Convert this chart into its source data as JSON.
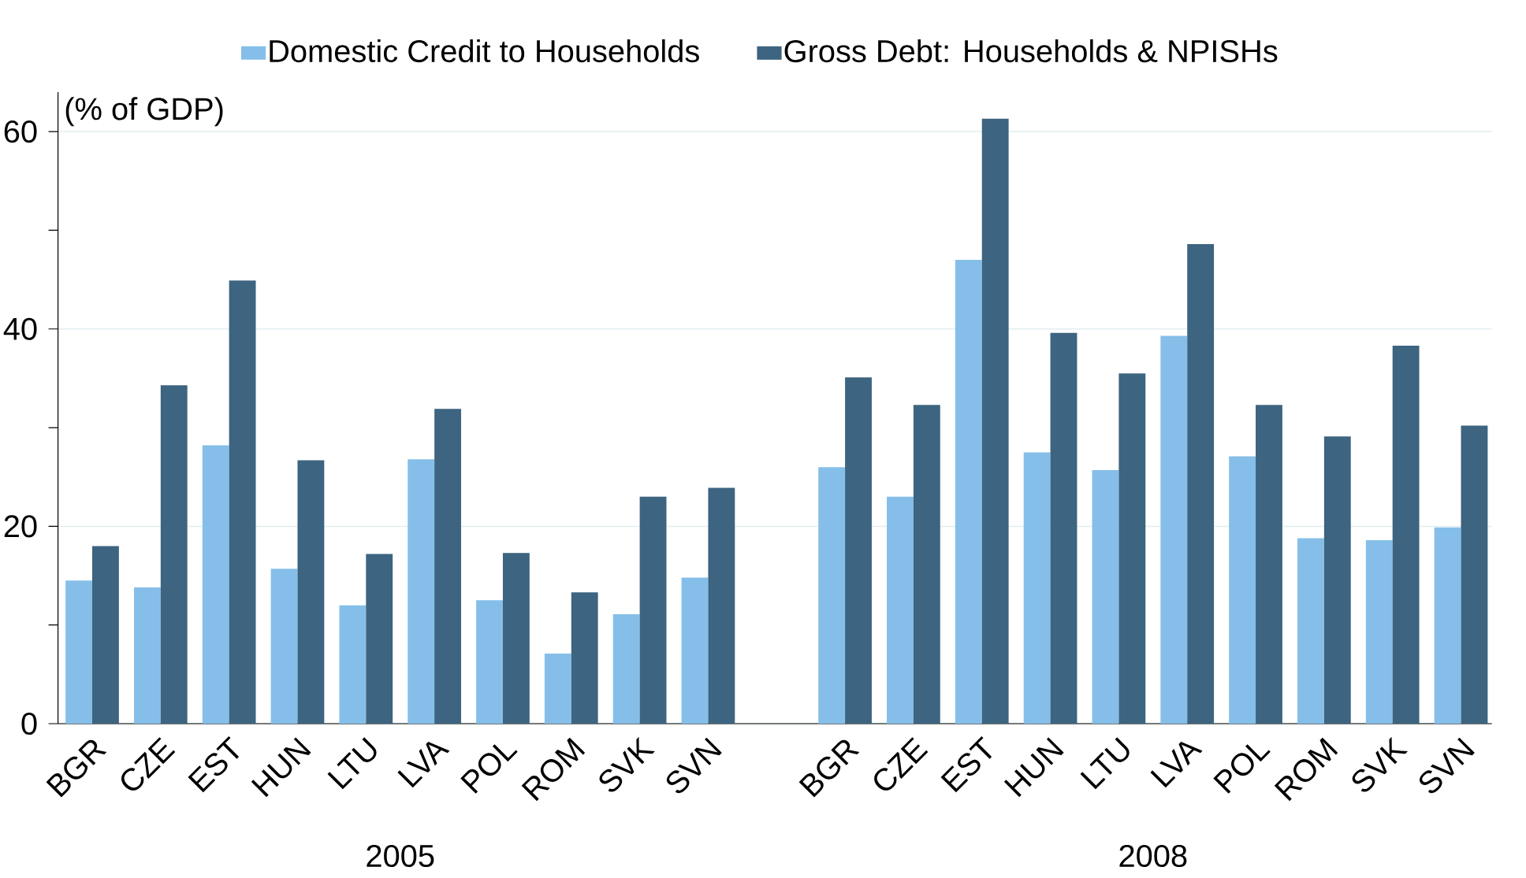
{
  "chart_data": {
    "type": "bar",
    "ylabel": "(% of GDP)",
    "categories": [
      "BGR",
      "CZE",
      "EST",
      "HUN",
      "LTU",
      "LVA",
      "POL",
      "ROM",
      "SVK",
      "SVN",
      null,
      "BGR",
      "CZE",
      "EST",
      "HUN",
      "LTU",
      "LVA",
      "POL",
      "ROM",
      "SVK",
      "SVN"
    ],
    "series": [
      {
        "name": "Domestic Credit to Households",
        "color": "#85bfe9",
        "values": [
          14.5,
          13.8,
          28.2,
          15.7,
          12.0,
          26.8,
          12.5,
          7.1,
          11.1,
          14.8,
          null,
          26.0,
          23.0,
          47.0,
          27.5,
          25.7,
          39.3,
          27.1,
          18.8,
          18.6,
          19.9
        ]
      },
      {
        "name": "Gross Debt: Households & NPISHs",
        "color": "#3d6480",
        "values": [
          18.0,
          34.3,
          44.9,
          26.7,
          17.2,
          31.9,
          17.3,
          13.3,
          23.0,
          23.9,
          null,
          35.1,
          32.3,
          61.3,
          39.6,
          35.5,
          48.6,
          32.3,
          29.1,
          38.3,
          30.2
        ]
      }
    ],
    "ylim": [
      0,
      64
    ],
    "yticks": [
      0,
      {
        "value": 10,
        "label": null
      },
      20,
      {
        "value": 30,
        "label": null
      },
      40,
      {
        "value": 50,
        "label": null
      },
      60
    ],
    "grid": "y",
    "legend": "top",
    "annotations": [
      "2005",
      "2008"
    ]
  }
}
